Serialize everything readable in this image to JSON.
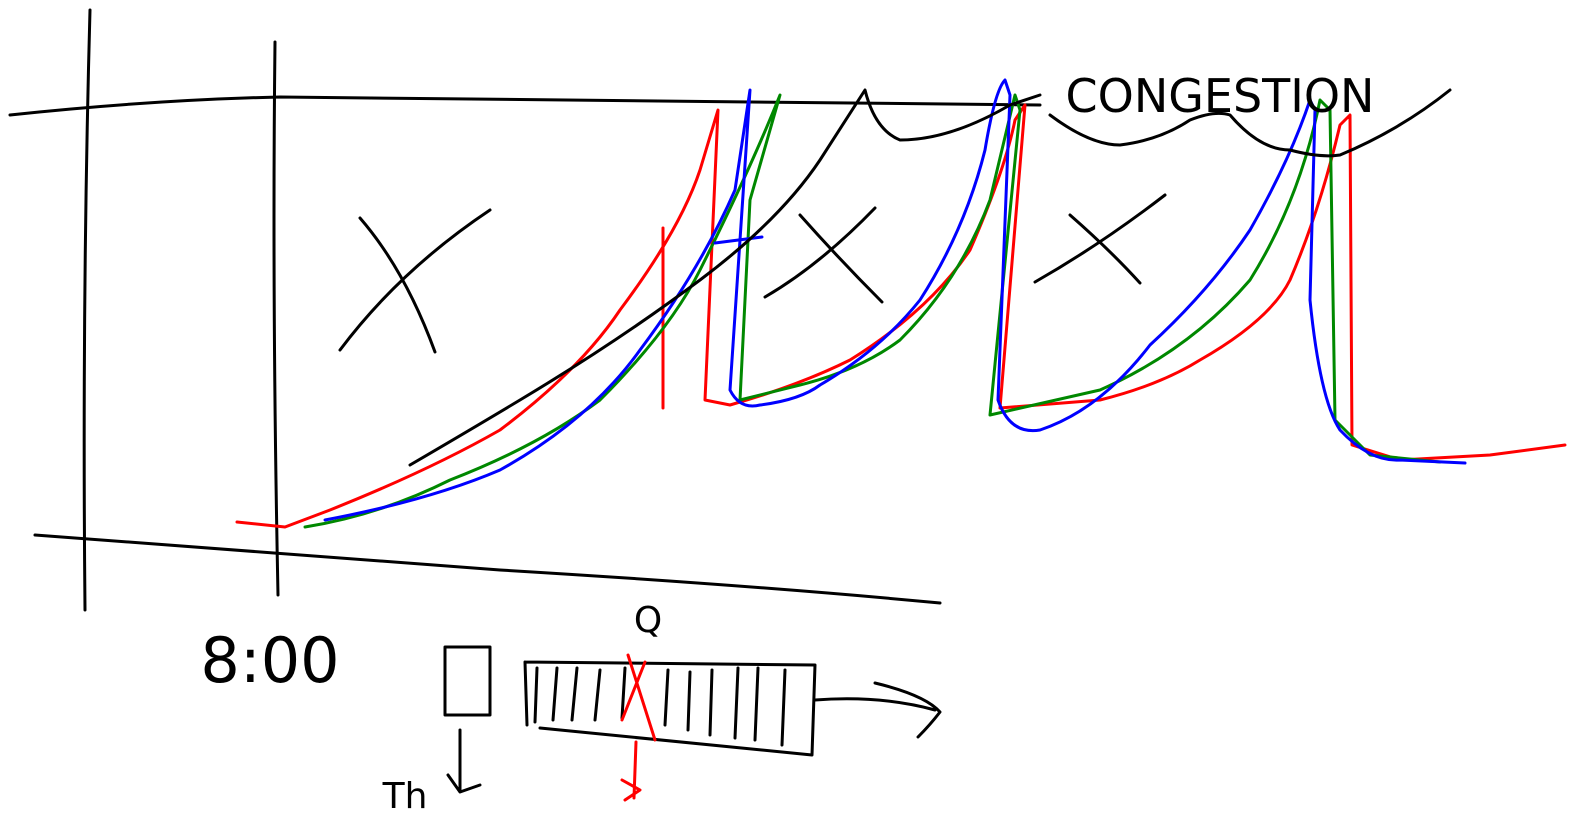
{
  "annotations": {
    "congestion": "CONGESTION",
    "time": "8:00",
    "queue": "Q",
    "threshold": "Th"
  }
}
